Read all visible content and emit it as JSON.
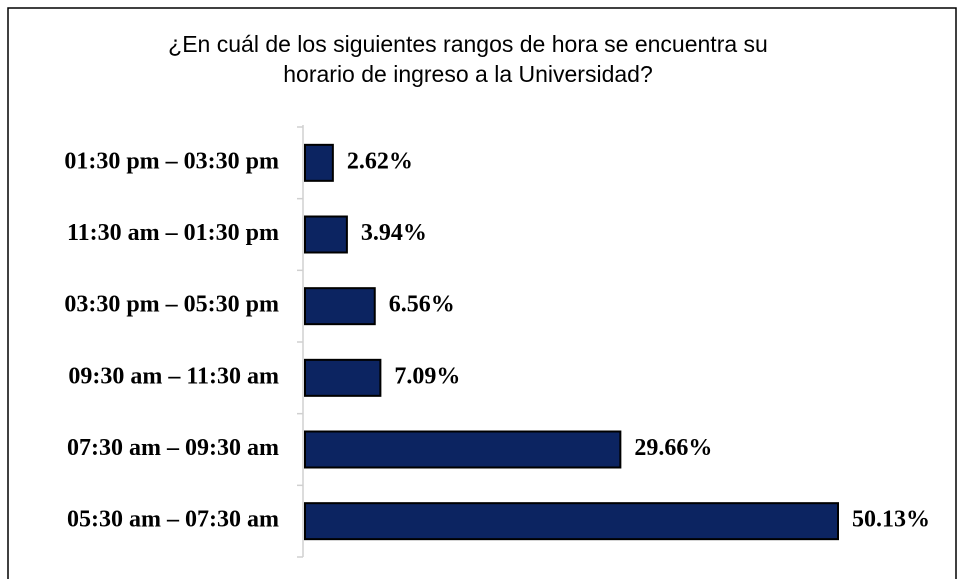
{
  "chart_data": {
    "type": "bar",
    "orientation": "horizontal",
    "title": [
      "¿En cuál de los siguientes rangos de hora se encuentra su",
      "horario de ingreso a la Universidad?"
    ],
    "categories": [
      "01:30 pm – 03:30 pm",
      "11:30 am – 01:30 pm",
      "03:30 pm – 05:30 pm",
      "09:30 am – 11:30 am",
      "07:30 am – 09:30 am",
      "05:30 am – 07:30 am"
    ],
    "values": [
      2.62,
      3.94,
      6.56,
      7.09,
      29.66,
      50.13
    ],
    "value_labels": [
      "2.62%",
      "3.94%",
      "6.56%",
      "7.09%",
      "29.66%",
      "50.13%"
    ],
    "color": "#0c2461"
  }
}
